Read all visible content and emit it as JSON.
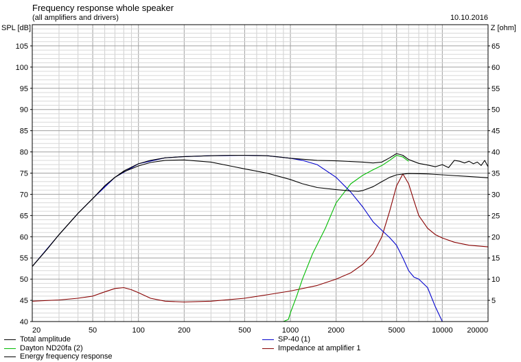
{
  "header": {
    "title": "Frequency response whole speaker",
    "subtitle": "(all amplifiers and drivers)",
    "date": "10.10.2016"
  },
  "chart_data": {
    "type": "line",
    "title": "Frequency response whole speaker",
    "subtitle": "(all amplifiers and drivers)",
    "xlabel": "",
    "ylabel_left": "SPL [dB]",
    "ylabel_right": "Z [ohm]",
    "x_scale": "log",
    "xlim": [
      20,
      20000
    ],
    "ylim_left": [
      40,
      110
    ],
    "ylim_right": [
      0,
      70
    ],
    "grid": true,
    "legend_placement": "bottom",
    "x_ticks": [
      20,
      50,
      100,
      200,
      500,
      1000,
      2000,
      5000,
      10000,
      20000
    ],
    "x_tick_labels": [
      "20",
      "50",
      "100",
      "200",
      "500",
      "1000",
      "2000",
      "5000",
      "10000",
      "20000"
    ],
    "y_ticks_left": [
      40,
      45,
      50,
      55,
      60,
      65,
      70,
      75,
      80,
      85,
      90,
      95,
      100,
      105
    ],
    "y_ticks_right": [
      5,
      10,
      15,
      20,
      25,
      30,
      35,
      40,
      45,
      50,
      55,
      60,
      65
    ],
    "series": [
      {
        "name": "Total amplitude",
        "color": "#000000",
        "axis": "left",
        "x": [
          20,
          25,
          30,
          40,
          50,
          60,
          70,
          80,
          100,
          120,
          150,
          200,
          300,
          400,
          500,
          700,
          1000,
          1500,
          2000,
          3000,
          3500,
          4000,
          4500,
          5000,
          5500,
          6000,
          7000,
          8000,
          9000,
          10000,
          11000,
          12000,
          13000,
          14000,
          15000,
          16000,
          17000,
          18000,
          19000,
          20000
        ],
        "y": [
          53,
          57,
          60.5,
          65.5,
          69,
          72,
          74,
          75.5,
          77.2,
          78,
          78.6,
          78.9,
          79.1,
          79.2,
          79.2,
          79.1,
          78.5,
          78,
          77.9,
          77.6,
          77.4,
          77.6,
          78.6,
          79.6,
          79.2,
          78.2,
          77.3,
          76.9,
          76.5,
          77,
          76.3,
          78,
          77.8,
          77.4,
          77.8,
          77.2,
          77.6,
          76.8,
          78,
          76.5
        ]
      },
      {
        "name": "SP-40 (1)",
        "color": "#0000cc",
        "axis": "left",
        "x": [
          20,
          30,
          40,
          50,
          70,
          100,
          150,
          200,
          300,
          500,
          700,
          1000,
          1200,
          1500,
          2000,
          2500,
          3000,
          3500,
          4000,
          4500,
          5000,
          5500,
          6000,
          6500,
          7000,
          8000,
          9000,
          10000,
          12000,
          20000
        ],
        "y": [
          53,
          60.5,
          65.5,
          69,
          74,
          77.2,
          78.6,
          78.9,
          79.1,
          79.2,
          79.1,
          78.5,
          78,
          77,
          74,
          70.5,
          67,
          63.5,
          61.5,
          59.8,
          58,
          55,
          52,
          50.5,
          50,
          48,
          43.5,
          40,
          40,
          40
        ]
      },
      {
        "name": "Dayton ND20fa (2)",
        "color": "#00bb00",
        "axis": "left",
        "x": [
          20,
          500,
          900,
          970,
          1000,
          1100,
          1200,
          1400,
          1700,
          2000,
          2500,
          3000,
          3500,
          4000,
          4500,
          5000,
          5500,
          6000
        ],
        "y": [
          40,
          40,
          40,
          40.5,
          42,
          46,
          50,
          56,
          62,
          68,
          72.5,
          74.5,
          75.8,
          76.8,
          78,
          79.2,
          78.8,
          77.8
        ]
      },
      {
        "name": "Impedance at amplifier 1",
        "color": "#880000",
        "axis": "right",
        "x": [
          20,
          30,
          40,
          50,
          60,
          70,
          80,
          90,
          100,
          120,
          150,
          200,
          300,
          500,
          700,
          1000,
          1500,
          2000,
          2500,
          3000,
          3500,
          4000,
          4500,
          5000,
          5500,
          6000,
          6500,
          7000,
          8000,
          9000,
          10000,
          12000,
          15000,
          20000
        ],
        "y": [
          4.8,
          5.1,
          5.5,
          6,
          7,
          7.8,
          8,
          7.5,
          6.8,
          5.5,
          4.8,
          4.6,
          4.8,
          5.5,
          6.3,
          7.2,
          8.5,
          10,
          11.5,
          13.5,
          16,
          20,
          26,
          32,
          34.8,
          32.5,
          28.5,
          25,
          22,
          20.5,
          19.7,
          18.7,
          18,
          17.6
        ]
      },
      {
        "name": "Energy frequency response",
        "color": "#000000",
        "axis": "left",
        "x": [
          20,
          25,
          30,
          40,
          50,
          60,
          70,
          80,
          100,
          120,
          150,
          200,
          300,
          400,
          500,
          700,
          1000,
          1200,
          1500,
          2000,
          2500,
          2800,
          3000,
          3500,
          4000,
          4500,
          5000,
          6000,
          8000,
          10000,
          15000,
          20000
        ],
        "y": [
          53,
          57,
          60.5,
          65.5,
          69,
          72,
          74,
          75.3,
          76.7,
          77.5,
          78,
          78.1,
          77.6,
          76.7,
          76,
          75,
          73.5,
          72.5,
          71.6,
          71.1,
          70.8,
          70.7,
          70.9,
          71.8,
          73,
          74,
          74.6,
          74.9,
          74.8,
          74.6,
          74.2,
          73.9
        ]
      }
    ]
  }
}
